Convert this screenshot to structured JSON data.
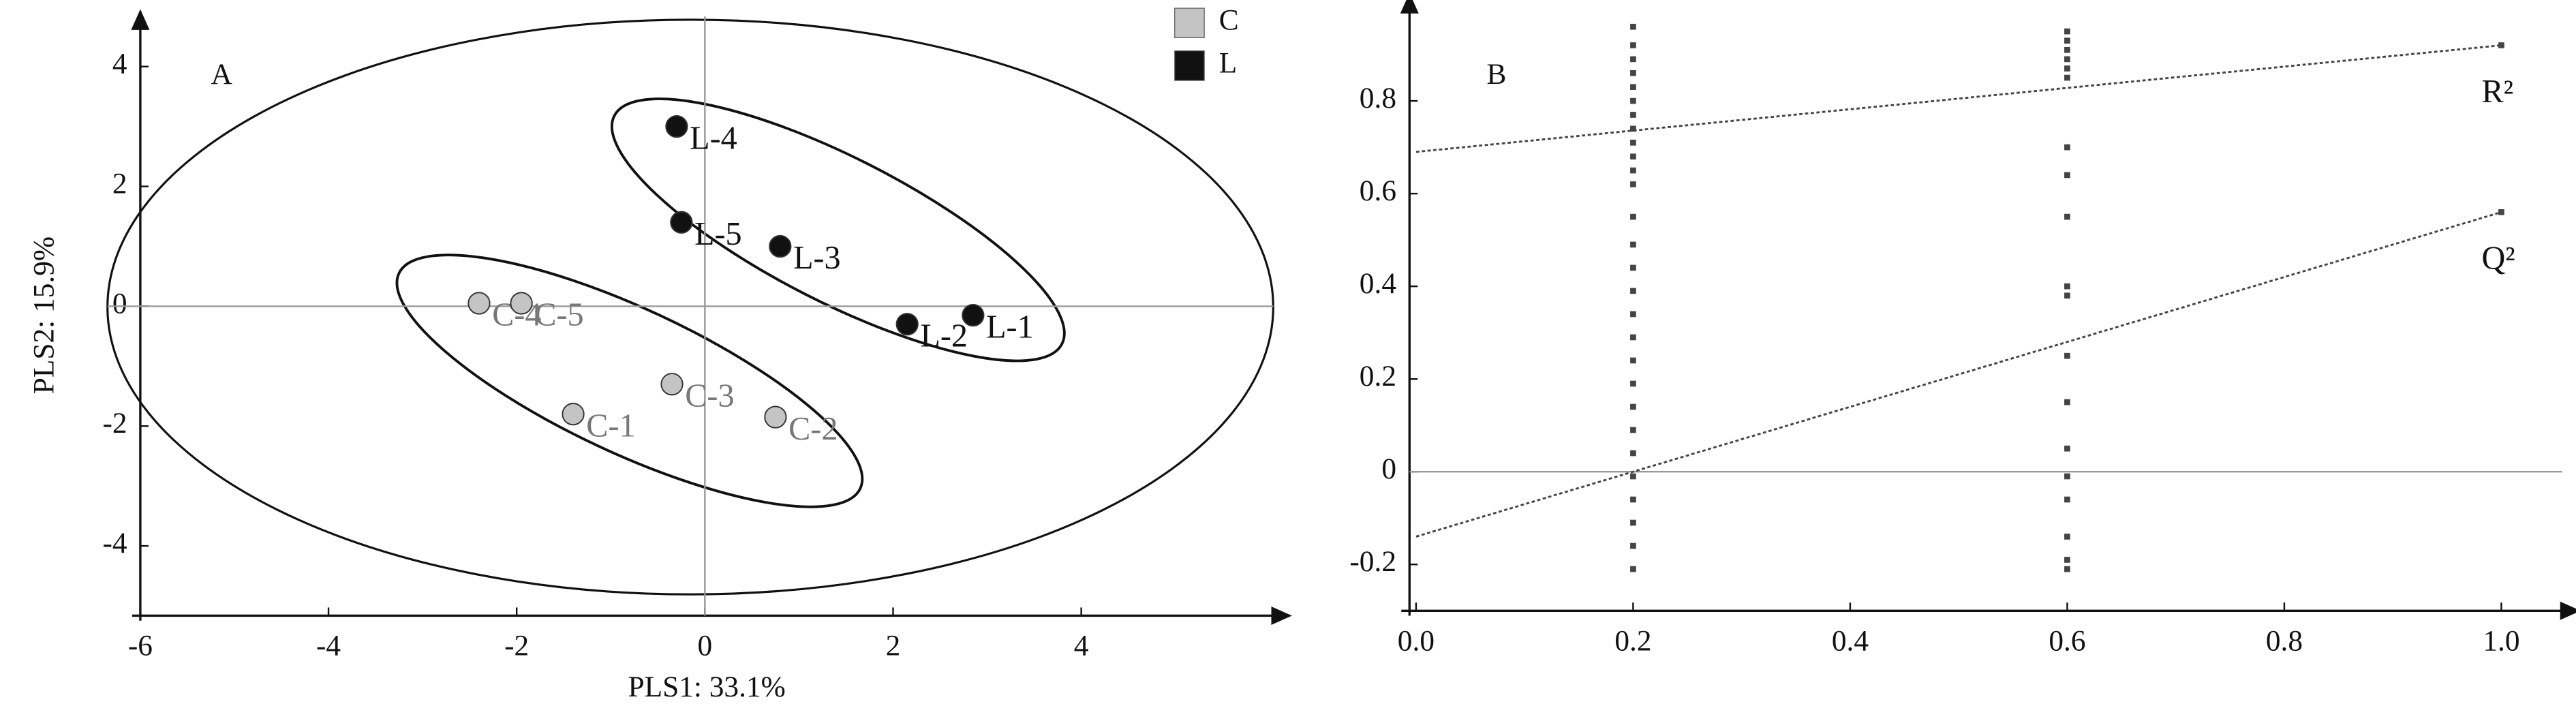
{
  "chart_data": [
    {
      "type": "scatter",
      "panel": "A",
      "xlabel": "PLS1: 33.1%",
      "ylabel": "PLS2: 15.9%",
      "xlim": [
        -6,
        6.04
      ],
      "ylim": [
        -5,
        4.7
      ],
      "xticks": [
        -6,
        -4,
        -2,
        0,
        2,
        4
      ],
      "yticks": [
        -4,
        -2,
        0,
        2,
        4
      ],
      "series": [
        {
          "name": "C",
          "color": "#c4c4c4",
          "label_color": "#777777",
          "labels": [
            "C-1",
            "C-2",
            "C-3",
            "C-4",
            "C-5"
          ],
          "x": [
            -1.4,
            0.75,
            -0.35,
            -2.4,
            -1.95
          ],
          "values": [
            -1.8,
            -1.85,
            -1.3,
            0.05,
            0.05
          ]
        },
        {
          "name": "L",
          "color": "#111111",
          "label_color": "#111111",
          "labels": [
            "L-1",
            "L-2",
            "L-3",
            "L-4",
            "L-5"
          ],
          "x": [
            2.85,
            2.15,
            0.8,
            -0.3,
            -0.25
          ],
          "values": [
            -0.15,
            -0.3,
            1.0,
            3.0,
            1.4
          ]
        }
      ]
    },
    {
      "type": "permutation",
      "panel": "B",
      "xlim": [
        0,
        1.056
      ],
      "ylim": [
        -0.3,
        1.0
      ],
      "xticks": [
        {
          "value": 0,
          "label": "0.0"
        },
        0.2,
        0.4,
        0.6,
        0.8,
        {
          "value": 1,
          "label": "1.0"
        }
      ],
      "yticks": [
        -0.2,
        0,
        0.2,
        0.4,
        0.6,
        0.8
      ],
      "series": [
        {
          "name": "R²",
          "color": "#444444",
          "x": [
            0.2,
            0.2,
            0.2,
            0.2,
            0.2,
            0.2,
            0.2,
            0.2,
            0.2,
            0.2,
            0.2,
            0.2,
            0.6,
            0.6,
            0.6,
            0.6,
            0.6,
            0.6,
            1
          ],
          "values": [
            0.62,
            0.65,
            0.68,
            0.71,
            0.74,
            0.77,
            0.8,
            0.83,
            0.86,
            0.89,
            0.92,
            0.96,
            0.85,
            0.87,
            0.89,
            0.91,
            0.93,
            0.95,
            0.92
          ],
          "line_x": [
            0,
            1
          ],
          "line_y": [
            0.69,
            0.92
          ]
        },
        {
          "name": "Q²",
          "color": "#444444",
          "x": [
            0.2,
            0.2,
            0.2,
            0.2,
            0.2,
            0.2,
            0.2,
            0.2,
            0.2,
            0.2,
            0.2,
            0.2,
            0.2,
            0.2,
            0.2,
            0.2,
            0.6,
            0.6,
            0.6,
            0.6,
            0.6,
            0.6,
            0.6,
            0.6,
            0.6,
            0.6,
            0.6,
            0.6,
            0.6,
            1
          ],
          "values": [
            -0.21,
            -0.16,
            -0.11,
            -0.06,
            -0.01,
            0.04,
            0.09,
            0.14,
            0.19,
            0.24,
            0.29,
            0.34,
            0.39,
            0.44,
            0.49,
            0.55,
            -0.21,
            -0.19,
            -0.14,
            -0.06,
            -0.01,
            0.05,
            0.15,
            0.25,
            0.38,
            0.4,
            0.55,
            0.64,
            0.7,
            0.56
          ],
          "line_x": [
            0,
            1
          ],
          "line_y": [
            -0.14,
            0.56
          ]
        }
      ]
    }
  ]
}
